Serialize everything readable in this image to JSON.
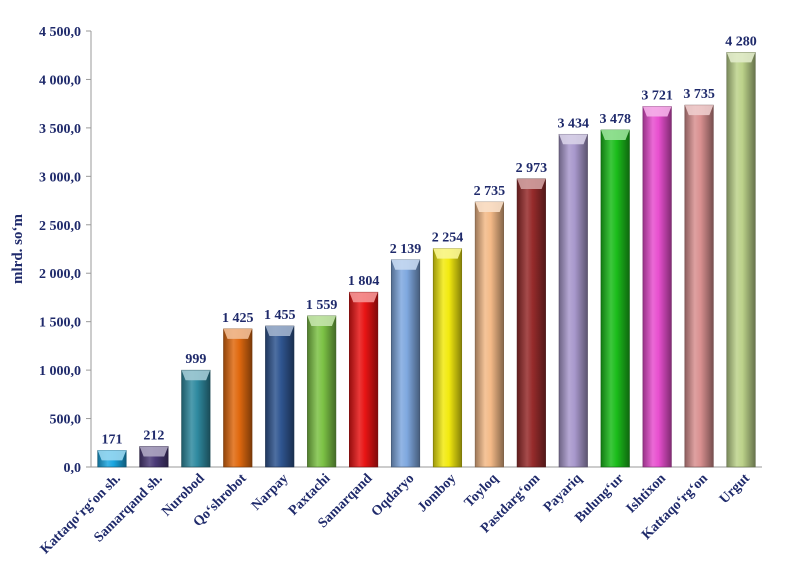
{
  "chart_data": {
    "type": "bar",
    "title": "",
    "xlabel": "",
    "ylabel": "mlrd. so‘m",
    "ylim": [
      0,
      4500
    ],
    "yticks": [
      0,
      500,
      1000,
      1500,
      2000,
      2500,
      3000,
      3500,
      4000,
      4500
    ],
    "ytick_labels": [
      "0,0",
      "500,0",
      "1 000,0",
      "1 500,0",
      "2 000,0",
      "2 500,0",
      "3 000,0",
      "3 500,0",
      "4 000,0",
      "4 500,0"
    ],
    "grid": false,
    "legend": "none",
    "categories": [
      "Kattaqo‘rg‘on sh.",
      "Samarqand sh.",
      "Nurobod",
      "Qo‘shrobot",
      "Narpay",
      "Paxtachi",
      "Samarqand",
      "Oqdaryo",
      "Jomboy",
      "Toyloq",
      "Pastdarg‘om",
      "Payariq",
      "Bulung‘ur",
      "Ishtixon",
      "Kattaqo‘rg‘on",
      "Urgut"
    ],
    "values": [
      171,
      212,
      999,
      1425,
      1455,
      1559,
      1804,
      2139,
      2254,
      2735,
      2973,
      3434,
      3478,
      3721,
      3735,
      4280
    ],
    "value_labels": [
      "171",
      "212",
      "999",
      "1 425",
      "1 455",
      "1 559",
      "1 804",
      "2 139",
      "2 254",
      "2 735",
      "2 973",
      "3 434",
      "3 478",
      "3 721",
      "3 735",
      "4 280"
    ],
    "colors": [
      "#1aa6e0",
      "#4b3a78",
      "#2f8aa0",
      "#e0690f",
      "#2f5590",
      "#7cc245",
      "#e81414",
      "#7fa8df",
      "#f2ea0f",
      "#f3b987",
      "#962b2b",
      "#a898cc",
      "#1bbd1b",
      "#e84fcf",
      "#d99090",
      "#bcd28a"
    ]
  }
}
